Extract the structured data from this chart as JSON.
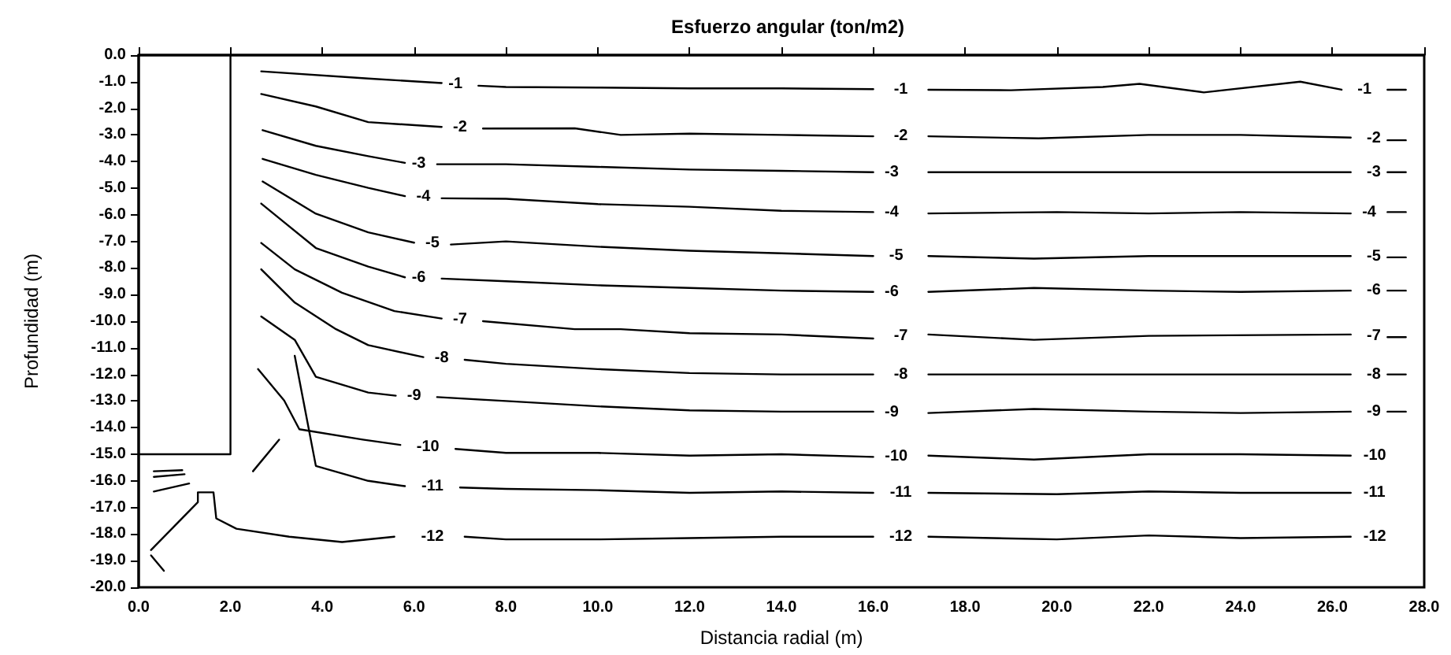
{
  "chart_data": {
    "type": "line",
    "title": "Esfuerzo angular (ton/m2)",
    "xlabel": "Distancia radial (m)",
    "ylabel": "Profundidad (m)",
    "xlim": [
      0,
      28
    ],
    "ylim": [
      -20,
      0
    ],
    "xticks": [
      {
        "value": 0,
        "label": "0.0"
      },
      {
        "value": 2,
        "label": "2.0"
      },
      {
        "value": 4,
        "label": "4.0"
      },
      {
        "value": 6,
        "label": "6.0"
      },
      {
        "value": 8,
        "label": "8.0"
      },
      {
        "value": 10,
        "label": "10.0"
      },
      {
        "value": 12,
        "label": "12.0"
      },
      {
        "value": 14,
        "label": "14.0"
      },
      {
        "value": 16,
        "label": "16.0"
      },
      {
        "value": 18,
        "label": "18.0"
      },
      {
        "value": 20,
        "label": "20.0"
      },
      {
        "value": 22,
        "label": "22.0"
      },
      {
        "value": 24,
        "label": "24.0"
      },
      {
        "value": 26,
        "label": "26.0"
      },
      {
        "value": 28,
        "label": "28.0"
      }
    ],
    "yticks": [
      {
        "value": 0,
        "label": "0.0"
      },
      {
        "value": -1,
        "label": "-1.0"
      },
      {
        "value": -2,
        "label": "-2.0"
      },
      {
        "value": -3,
        "label": "-3.0"
      },
      {
        "value": -4,
        "label": "-4.0"
      },
      {
        "value": -5,
        "label": "-5.0"
      },
      {
        "value": -6,
        "label": "-6.0"
      },
      {
        "value": -7,
        "label": "-7.0"
      },
      {
        "value": -8,
        "label": "-8.0"
      },
      {
        "value": -9,
        "label": "-9.0"
      },
      {
        "value": -10,
        "label": "-10.0"
      },
      {
        "value": -11,
        "label": "-11.0"
      },
      {
        "value": -12,
        "label": "-12.0"
      },
      {
        "value": -13,
        "label": "-13.0"
      },
      {
        "value": -14,
        "label": "-14.0"
      },
      {
        "value": -15,
        "label": "-15.0"
      },
      {
        "value": -16,
        "label": "-16.0"
      },
      {
        "value": -17,
        "label": "-17.0"
      },
      {
        "value": -18,
        "label": "-18.0"
      },
      {
        "value": -19,
        "label": "-19.0"
      },
      {
        "value": -20,
        "label": "-20.0"
      }
    ],
    "grid": false,
    "legend": false,
    "marker": "none",
    "line_style": "solid",
    "series": [
      {
        "name": "-1",
        "color": "#000000",
        "x": [
          2.67,
          5.0,
          6.6,
          6.9,
          7.4,
          8,
          10,
          12,
          14,
          16,
          16.6,
          17.2,
          19,
          21,
          21.8,
          23.2,
          25.3,
          26.2,
          26.7,
          27.2,
          27.6
        ],
        "values": [
          -0.61,
          -0.88,
          -1.05,
          null,
          -1.15,
          -1.2,
          -1.22,
          -1.25,
          -1.25,
          -1.28,
          null,
          -1.3,
          -1.32,
          -1.2,
          -1.08,
          -1.4,
          -1.0,
          -1.3,
          null,
          -1.3,
          -1.3
        ]
      },
      {
        "name": "-2",
        "color": "#000000",
        "x": [
          2.67,
          3.86,
          5.0,
          6.6,
          7.0,
          7.5,
          9.5,
          10.5,
          12,
          14,
          16,
          16.6,
          17.2,
          19.6,
          22,
          24,
          26.4,
          26.9,
          27.2,
          27.6
        ],
        "values": [
          -1.46,
          -1.93,
          -2.52,
          -2.7,
          null,
          -2.76,
          -2.75,
          -3.0,
          -2.95,
          -3.0,
          -3.05,
          null,
          -3.05,
          -3.13,
          -3.0,
          -3.0,
          -3.1,
          null,
          -3.2,
          -3.2
        ]
      },
      {
        "name": "-3",
        "color": "#000000",
        "x": [
          2.7,
          3.86,
          5.0,
          5.8,
          6.1,
          6.5,
          8,
          10,
          12,
          14,
          16,
          16.4,
          17.2,
          20,
          22,
          24,
          26.4,
          26.9,
          27.2,
          27.6
        ],
        "values": [
          -2.82,
          -3.41,
          -3.8,
          -4.05,
          null,
          -4.1,
          -4.1,
          -4.2,
          -4.3,
          -4.35,
          -4.4,
          null,
          -4.4,
          -4.4,
          -4.4,
          -4.4,
          -4.4,
          null,
          -4.4,
          -4.4
        ]
      },
      {
        "name": "-4",
        "color": "#000000",
        "x": [
          2.7,
          3.86,
          5.0,
          5.8,
          6.2,
          6.6,
          8,
          10,
          12,
          14,
          16,
          16.4,
          17.2,
          20,
          22,
          24,
          26.4,
          26.8,
          27.2,
          27.6
        ],
        "values": [
          -3.9,
          -4.5,
          -4.99,
          -5.3,
          null,
          -5.38,
          -5.4,
          -5.6,
          -5.7,
          -5.85,
          -5.9,
          null,
          -5.95,
          -5.9,
          -5.95,
          -5.9,
          -5.95,
          null,
          -5.9,
          -5.9
        ]
      },
      {
        "name": "-5",
        "color": "#000000",
        "x": [
          2.7,
          3.86,
          5.0,
          6.0,
          6.4,
          6.8,
          8,
          10,
          12,
          14,
          16,
          16.5,
          17.2,
          19.5,
          22,
          24,
          26.4,
          26.9,
          27.2,
          27.6
        ],
        "values": [
          -4.75,
          -5.96,
          -6.66,
          -7.05,
          null,
          -7.12,
          -7.0,
          -7.2,
          -7.35,
          -7.45,
          -7.55,
          null,
          -7.55,
          -7.65,
          -7.55,
          -7.55,
          -7.55,
          null,
          -7.6,
          -7.6
        ]
      },
      {
        "name": "-6",
        "color": "#000000",
        "x": [
          2.67,
          3.16,
          3.86,
          5.0,
          5.8,
          6.1,
          6.6,
          8,
          10,
          12,
          14,
          16,
          16.4,
          17.2,
          19.5,
          22,
          24,
          26.4,
          26.9,
          27.2,
          27.6
        ],
        "values": [
          -5.58,
          -6.27,
          -7.25,
          -7.95,
          -8.35,
          null,
          -8.4,
          -8.5,
          -8.65,
          -8.75,
          -8.85,
          -8.9,
          null,
          -8.9,
          -8.75,
          -8.85,
          -8.9,
          -8.85,
          null,
          -8.85,
          -8.85
        ]
      },
      {
        "name": "-7",
        "color": "#000000",
        "x": [
          2.67,
          3.4,
          4.43,
          5.57,
          6.6,
          7.0,
          7.5,
          9.5,
          10.5,
          12,
          14,
          16,
          16.6,
          17.2,
          19.5,
          22,
          26.4,
          26.9,
          27.2,
          27.6
        ],
        "values": [
          -7.06,
          -8.05,
          -8.93,
          -9.62,
          -9.9,
          null,
          -10.0,
          -10.3,
          -10.3,
          -10.45,
          -10.5,
          -10.65,
          null,
          -10.5,
          -10.7,
          -10.55,
          -10.5,
          null,
          -10.6,
          -10.6
        ]
      },
      {
        "name": "-8",
        "color": "#000000",
        "x": [
          2.67,
          3.4,
          4.3,
          5.0,
          6.2,
          6.6,
          7.1,
          8,
          10,
          12,
          14,
          16,
          16.6,
          17.2,
          20,
          22,
          24,
          26.4,
          26.9,
          27.2,
          27.6
        ],
        "values": [
          -8.05,
          -9.3,
          -10.3,
          -10.9,
          -11.35,
          null,
          -11.45,
          -11.6,
          -11.8,
          -11.95,
          -12.0,
          -12.0,
          null,
          -12.0,
          -12.0,
          -12.0,
          -12.0,
          -12.0,
          null,
          -12.0,
          -12.0
        ]
      },
      {
        "name": "-9",
        "color": "#000000",
        "x": [
          2.67,
          3.4,
          3.86,
          5.0,
          5.6,
          6.0,
          6.5,
          8,
          10,
          12,
          14,
          16,
          16.4,
          17.2,
          19.5,
          22,
          24,
          26.4,
          26.9,
          27.2,
          27.6
        ],
        "values": [
          -9.82,
          -10.7,
          -12.09,
          -12.68,
          -12.8,
          null,
          -12.85,
          -13.0,
          -13.2,
          -13.35,
          -13.4,
          -13.4,
          null,
          -13.45,
          -13.3,
          -13.4,
          -13.45,
          -13.4,
          null,
          -13.4,
          -13.4
        ]
      },
      {
        "name": "-10",
        "color": "#000000",
        "x": [
          2.6,
          3.17,
          3.5,
          4.88,
          5.7,
          6.3,
          6.9,
          8,
          10,
          12,
          14,
          16,
          16.5,
          17.2,
          19.5,
          22,
          24,
          26.4
        ],
        "values": [
          -11.8,
          -12.98,
          -14.06,
          -14.45,
          -14.65,
          null,
          -14.8,
          -14.95,
          -14.95,
          -15.05,
          -15.0,
          -15.1,
          null,
          -15.05,
          -15.2,
          -15.0,
          -15.0,
          -15.05
        ]
      },
      {
        "name": "-11",
        "color": "#000000",
        "x": [
          3.4,
          3.86,
          5.0,
          5.8,
          6.4,
          7.0,
          8,
          10,
          12,
          14,
          16,
          16.6,
          17.2,
          20,
          22,
          24,
          26.4
        ],
        "values": [
          -11.3,
          -15.44,
          -16.0,
          -16.2,
          null,
          -16.25,
          -16.3,
          -16.35,
          -16.45,
          -16.4,
          -16.45,
          null,
          -16.45,
          -16.5,
          -16.4,
          -16.45,
          -16.45
        ]
      },
      {
        "name": "-12",
        "color": "#000000",
        "x": [
          0.27,
          1.29,
          1.29,
          1.63,
          1.69,
          2.13,
          3.28,
          4.43,
          5.57,
          6.4,
          7.1,
          8,
          10,
          12,
          14,
          16,
          16.6,
          17.2,
          20,
          22,
          24,
          26.4
        ],
        "values": [
          -18.6,
          -16.8,
          -16.43,
          -16.43,
          -17.41,
          -17.8,
          -18.1,
          -18.3,
          -18.1,
          null,
          -18.1,
          -18.2,
          -18.2,
          -18.15,
          -18.1,
          -18.1,
          null,
          -18.1,
          -18.2,
          -18.05,
          -18.15,
          -18.1
        ]
      },
      {
        "color": "#000000",
        "x": [
          0.27,
          0.55
        ],
        "values": [
          -18.8,
          -19.38
        ]
      },
      {
        "color": "#000000",
        "x": [
          0.33,
          0.95
        ],
        "values": [
          -15.64,
          -15.6
        ]
      },
      {
        "color": "#000000",
        "x": [
          0.33,
          1.0
        ],
        "values": [
          -15.85,
          -15.75
        ]
      },
      {
        "color": "#000000",
        "x": [
          0.33,
          1.1
        ],
        "values": [
          -16.4,
          -16.1
        ]
      },
      {
        "color": "#000000",
        "x": [
          3.06,
          2.49
        ],
        "values": [
          -14.45,
          -15.64
        ]
      },
      {
        "color": "#000000",
        "x": [
          2.0,
          2.0,
          0.0
        ],
        "values": [
          0.0,
          -15.0,
          -15.0
        ]
      }
    ]
  }
}
